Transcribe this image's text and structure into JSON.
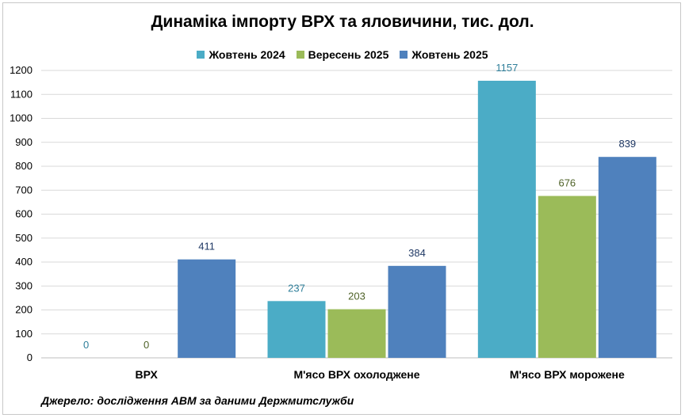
{
  "chart_data": {
    "type": "bar",
    "title": "Динаміка імпорту ВРХ та яловичини, тис. дол.",
    "categories": [
      "ВРХ",
      "М'ясо ВРХ охолоджене",
      "М'ясо ВРХ морожене"
    ],
    "series": [
      {
        "name": "Жовтень 2024",
        "values": [
          0,
          237,
          1157
        ],
        "color": "#4bacc6",
        "label_color": "#2f7f9a"
      },
      {
        "name": "Вересень 2025",
        "values": [
          0,
          203,
          676
        ],
        "color": "#9bbb59",
        "label_color": "#4f6228"
      },
      {
        "name": "Жовтень 2025",
        "values": [
          411,
          384,
          839
        ],
        "color": "#4f81bd",
        "label_color": "#1f3864"
      }
    ],
    "ylim": [
      0,
      1200
    ],
    "yticks": [
      0,
      100,
      200,
      300,
      400,
      500,
      600,
      700,
      800,
      900,
      1000,
      1100,
      1200
    ],
    "grid": true,
    "legend_position": "top-center",
    "source_note": "Джерело: дослідження АВМ за даними Держмитслужби"
  }
}
